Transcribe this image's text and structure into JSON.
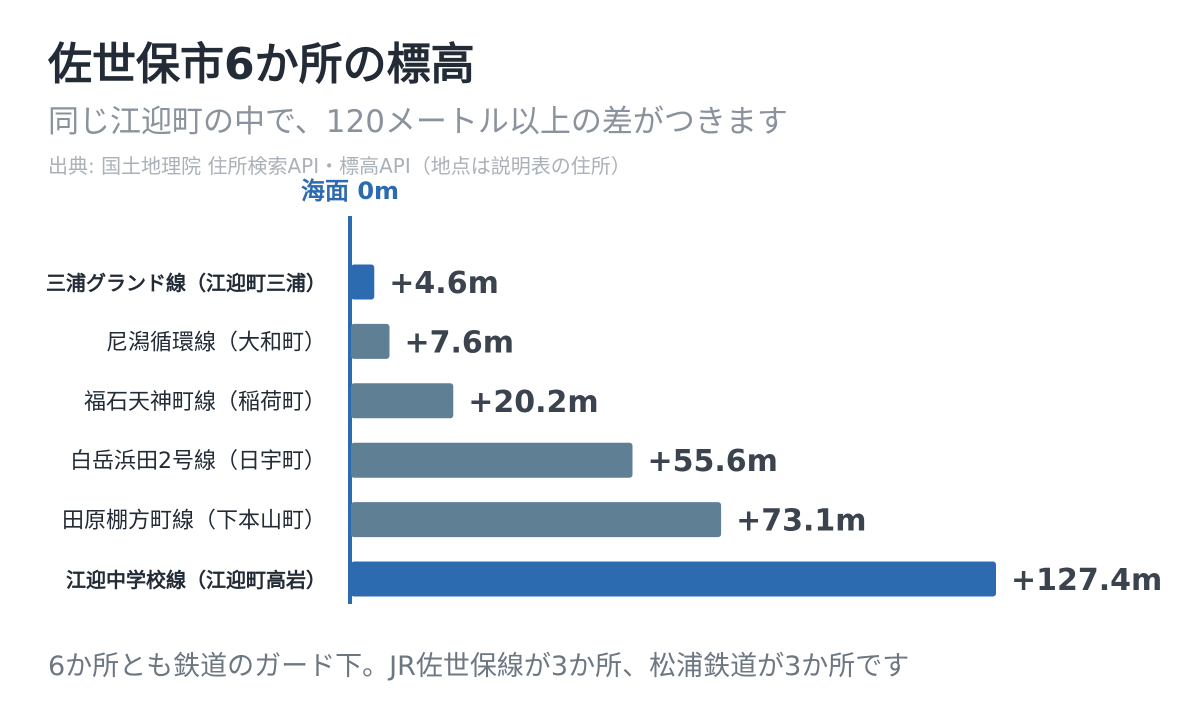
{
  "header": {
    "title": "佐世保市6か所の標高",
    "subtitle": "同じ江迎町の中で、120メートル以上の差がつきます",
    "source": "出典: 国土地理院 住所検索API・標高API（地点は説明表の住所）"
  },
  "footer": {
    "note": "6か所とも鉄道のガード下。JR佐世保線が3か所、松浦鉄道が3か所です"
  },
  "colors": {
    "highlight": "#2c6bb0",
    "normal": "#5f7f94",
    "axis": "#2c6bb0",
    "label_text": "#222b36",
    "value_text": "#3a434e"
  },
  "chart_data": {
    "type": "bar",
    "orientation": "horizontal",
    "baseline_label": "海面 0m",
    "categories": [
      "三浦グランド線（江迎町三浦）",
      "尼潟循環線（大和町）",
      "福石天神町線（稲荷町）",
      "白岳浜田2号線（日宇町）",
      "田原棚方町線（下本山町）",
      "江迎中学校線（江迎町高岩）"
    ],
    "values": [
      4.6,
      7.6,
      20.2,
      55.6,
      73.1,
      127.4
    ],
    "value_labels": [
      "+4.6m",
      "+7.6m",
      "+20.2m",
      "+55.6m",
      "+73.1m",
      "+127.4m"
    ],
    "highlighted": [
      true,
      false,
      false,
      false,
      false,
      true
    ],
    "unit": "m",
    "xlim": [
      0,
      127.4
    ],
    "grid": false
  }
}
